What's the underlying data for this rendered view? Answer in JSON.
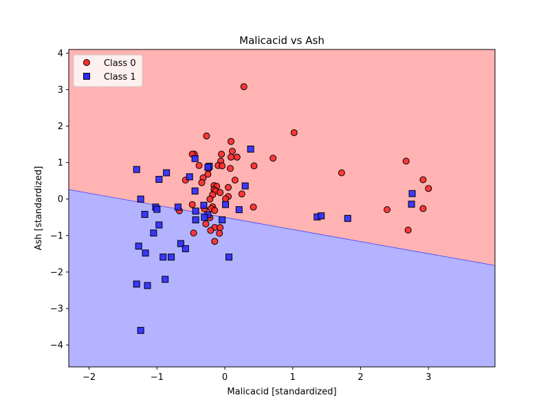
{
  "chart_data": {
    "type": "scatter",
    "title": "Malicacid vs Ash",
    "xlabel": "Malicacid [standardized]",
    "ylabel": "Ash [standardized]",
    "xlim": [
      -2.3,
      3.98
    ],
    "ylim": [
      -4.6,
      4.1
    ],
    "xticks": [
      -2,
      -1,
      0,
      1,
      2,
      3
    ],
    "yticks": [
      -4,
      -3,
      -2,
      -1,
      0,
      1,
      2,
      3,
      4
    ],
    "tick_labels_x": [
      "−2",
      "−1",
      "0",
      "1",
      "2",
      "3"
    ],
    "tick_labels_y": [
      "−4",
      "−3",
      "−2",
      "−1",
      "0",
      "1",
      "2",
      "3",
      "4"
    ],
    "grid": false,
    "legend_position": "upper-left",
    "decision_boundary": {
      "description": "linear boundary",
      "points": [
        [
          -2.3,
          0.26
        ],
        [
          3.98,
          -1.82
        ]
      ],
      "region_above": "Class 0",
      "region_below": "Class 1"
    },
    "colors": {
      "class0_marker": "#ff2a2a",
      "class1_marker": "#2a2aff",
      "region_class0": "#ffb3b3",
      "region_class1": "#b3b3ff",
      "marker_edge": "#000000"
    },
    "series": [
      {
        "name": "Class 0",
        "marker": "circle",
        "points": [
          [
            0.28,
            3.08
          ],
          [
            -0.27,
            1.73
          ],
          [
            1.02,
            1.82
          ],
          [
            0.09,
            1.58
          ],
          [
            -0.45,
            1.23
          ],
          [
            -0.48,
            1.23
          ],
          [
            0.11,
            1.31
          ],
          [
            -0.05,
            1.23
          ],
          [
            0.09,
            1.15
          ],
          [
            0.18,
            1.15
          ],
          [
            0.71,
            1.12
          ],
          [
            -0.06,
            1.04
          ],
          [
            2.67,
            1.04
          ],
          [
            -0.38,
            0.92
          ],
          [
            -0.1,
            0.92
          ],
          [
            -0.04,
            0.91
          ],
          [
            0.43,
            0.91
          ],
          [
            0.08,
            0.84
          ],
          [
            -0.24,
            0.83
          ],
          [
            1.72,
            0.72
          ],
          [
            -0.25,
            0.68
          ],
          [
            -0.32,
            0.58
          ],
          [
            -0.58,
            0.52
          ],
          [
            0.15,
            0.52
          ],
          [
            2.92,
            0.53
          ],
          [
            -0.34,
            0.45
          ],
          [
            -0.16,
            0.37
          ],
          [
            -0.12,
            0.35
          ],
          [
            0.05,
            0.32
          ],
          [
            -0.16,
            0.26
          ],
          [
            -0.14,
            0.22
          ],
          [
            3.0,
            0.29
          ],
          [
            -0.07,
            0.18
          ],
          [
            -0.18,
            0.12
          ],
          [
            0.25,
            0.14
          ],
          [
            0.05,
            0.07
          ],
          [
            0.01,
            0.01
          ],
          [
            -0.22,
            0.0
          ],
          [
            -0.48,
            -0.15
          ],
          [
            0.42,
            -0.22
          ],
          [
            -0.18,
            -0.21
          ],
          [
            -0.2,
            -0.26
          ],
          [
            -0.67,
            -0.32
          ],
          [
            -0.15,
            -0.31
          ],
          [
            -0.3,
            -0.27
          ],
          [
            2.39,
            -0.29
          ],
          [
            2.92,
            -0.26
          ],
          [
            -0.22,
            -0.51
          ],
          [
            -0.28,
            -0.68
          ],
          [
            -0.15,
            -0.78
          ],
          [
            -0.07,
            -0.78
          ],
          [
            -0.21,
            -0.86
          ],
          [
            2.7,
            -0.85
          ],
          [
            -0.08,
            -0.94
          ],
          [
            -0.46,
            -0.93
          ],
          [
            -0.15,
            -1.16
          ]
        ]
      },
      {
        "name": "Class 1",
        "marker": "square",
        "points": [
          [
            0.38,
            1.37
          ],
          [
            -0.44,
            1.11
          ],
          [
            -0.23,
            0.9
          ],
          [
            -0.25,
            0.87
          ],
          [
            -1.3,
            0.81
          ],
          [
            -0.86,
            0.72
          ],
          [
            -0.52,
            0.61
          ],
          [
            -0.97,
            0.54
          ],
          [
            0.3,
            0.36
          ],
          [
            -0.44,
            0.22
          ],
          [
            2.76,
            0.15
          ],
          [
            -1.24,
            0.0
          ],
          [
            -0.31,
            -0.17
          ],
          [
            0.01,
            -0.15
          ],
          [
            -1.02,
            -0.22
          ],
          [
            -0.69,
            -0.22
          ],
          [
            -1.0,
            -0.28
          ],
          [
            0.21,
            -0.29
          ],
          [
            -0.43,
            -0.33
          ],
          [
            2.75,
            -0.14
          ],
          [
            -0.25,
            -0.43
          ],
          [
            -1.18,
            -0.42
          ],
          [
            -0.3,
            -0.5
          ],
          [
            1.36,
            -0.49
          ],
          [
            1.42,
            -0.46
          ],
          [
            1.81,
            -0.53
          ],
          [
            -0.43,
            -0.57
          ],
          [
            -0.04,
            -0.57
          ],
          [
            -0.97,
            -0.71
          ],
          [
            -1.05,
            -0.93
          ],
          [
            -0.65,
            -1.22
          ],
          [
            -1.27,
            -1.29
          ],
          [
            -0.58,
            -1.36
          ],
          [
            -1.17,
            -1.48
          ],
          [
            -0.91,
            -1.59
          ],
          [
            -0.79,
            -1.59
          ],
          [
            0.06,
            -1.59
          ],
          [
            -1.3,
            -2.33
          ],
          [
            -0.88,
            -2.2
          ],
          [
            -1.14,
            -2.37
          ],
          [
            -1.24,
            -3.6
          ]
        ]
      }
    ]
  }
}
